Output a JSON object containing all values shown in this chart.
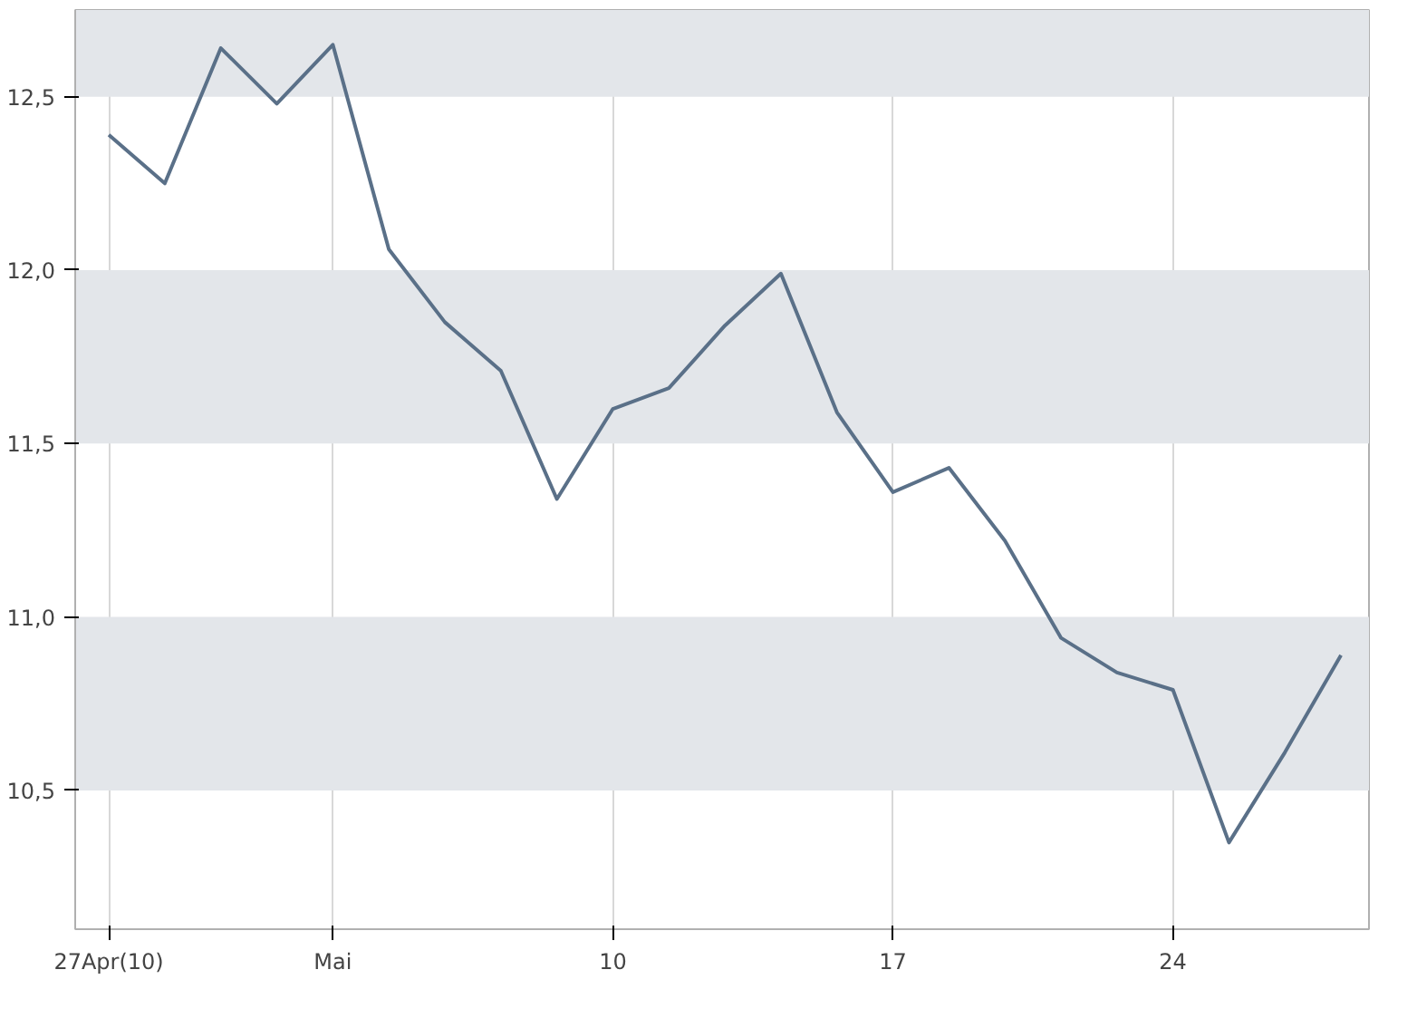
{
  "chart_data": {
    "type": "line",
    "categories": [
      "27Apr(10)",
      null,
      null,
      null,
      "Mai",
      null,
      null,
      null,
      null,
      "10",
      null,
      null,
      null,
      null,
      "17",
      null,
      null,
      null,
      null,
      "24",
      null,
      null,
      null
    ],
    "series": [
      {
        "color": "#5a7088",
        "values": [
          12.39,
          12.25,
          12.64,
          12.48,
          12.65,
          12.06,
          11.85,
          11.71,
          11.34,
          11.6,
          11.66,
          11.84,
          11.99,
          11.59,
          11.36,
          11.43,
          11.22,
          10.94,
          10.84,
          10.79,
          10.35,
          10.61,
          10.89
        ]
      }
    ],
    "ylim": [
      10.1,
      12.75
    ],
    "yticks": [
      {
        "value": 10.5,
        "label": "10,5"
      },
      {
        "value": 11.0,
        "label": "11,0"
      },
      {
        "value": 11.5,
        "label": "11,5"
      },
      {
        "value": 12.0,
        "label": "12,0"
      },
      {
        "value": 12.5,
        "label": "12,5"
      }
    ],
    "grid": true,
    "marker": "none",
    "line_style": "solid"
  }
}
